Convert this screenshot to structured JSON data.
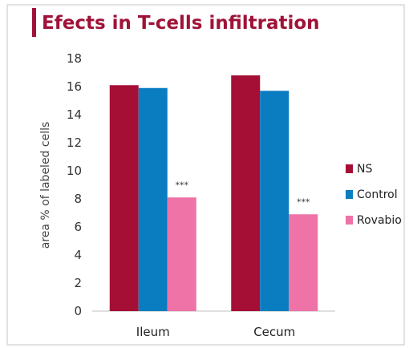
{
  "chart_data": {
    "type": "bar",
    "title": "Efects in T-cells infiltration",
    "xlabel": "",
    "ylabel": "area % of labeled cells",
    "ylim": [
      0,
      18
    ],
    "yticks": [
      0,
      2,
      4,
      6,
      8,
      10,
      12,
      14,
      16,
      18
    ],
    "grid": false,
    "legend_position": "right",
    "categories": [
      "Ileum",
      "Cecum"
    ],
    "series": [
      {
        "name": "NS",
        "color": "#a50f35",
        "values": [
          16.1,
          16.8
        ]
      },
      {
        "name": "Control",
        "color": "#0a7dc1",
        "values": [
          15.9,
          15.7
        ]
      },
      {
        "name": "Rovabio",
        "color": "#ef73a6",
        "values": [
          8.1,
          6.9
        ]
      }
    ],
    "annotations": [
      {
        "category": "Ileum",
        "series": "Rovabio",
        "text": "***"
      },
      {
        "category": "Cecum",
        "series": "Rovabio",
        "text": "***"
      }
    ],
    "colors": {
      "title_accent": "#a01238",
      "frame_border": "#d9d9d9",
      "axis": "#bfbfbf"
    }
  }
}
